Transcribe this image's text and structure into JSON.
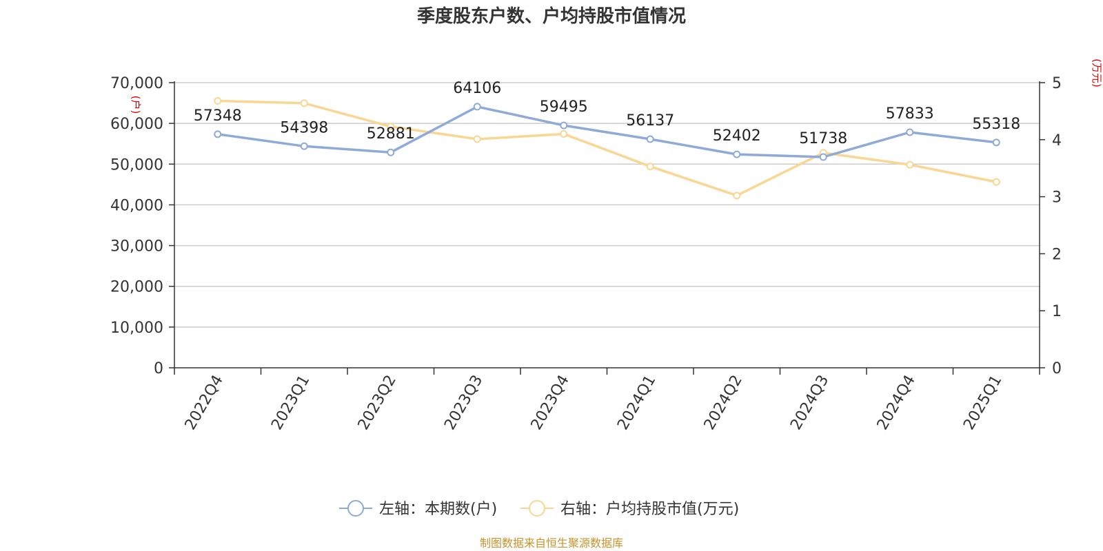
{
  "chart_data": {
    "type": "line",
    "title": "季度股东户数、户均持股市值情况",
    "categories": [
      "2022Q4",
      "2023Q1",
      "2023Q2",
      "2023Q3",
      "2023Q4",
      "2024Q1",
      "2024Q2",
      "2024Q3",
      "2024Q4",
      "2025Q1"
    ],
    "left_axis": {
      "unit": "(户)",
      "ylim": [
        0,
        70000
      ],
      "ticks": [
        "0",
        "10,000",
        "20,000",
        "30,000",
        "40,000",
        "50,000",
        "60,000",
        "70,000"
      ],
      "tick_values": [
        0,
        10000,
        20000,
        30000,
        40000,
        50000,
        60000,
        70000
      ]
    },
    "right_axis": {
      "unit": "(万元)",
      "ylim": [
        0,
        5
      ],
      "ticks": [
        "0",
        "1",
        "2",
        "3",
        "4",
        "5"
      ],
      "tick_values": [
        0,
        1,
        2,
        3,
        4,
        5
      ]
    },
    "grid": true,
    "legend_position": "bottom",
    "series": [
      {
        "name": "左轴：本期数(户)",
        "axis": "left",
        "color": "#8eaad8",
        "values": [
          57348,
          54398,
          52881,
          64106,
          59495,
          56137,
          52402,
          51738,
          57833,
          55318
        ],
        "labels": [
          "57348",
          "54398",
          "52881",
          "64106",
          "59495",
          "56137",
          "52402",
          "51738",
          "57833",
          "55318"
        ]
      },
      {
        "name": "右轴：户均持股市值(万元)",
        "axis": "right",
        "color": "#fad693",
        "values": [
          4.68,
          4.64,
          4.23,
          4.01,
          4.1,
          3.53,
          3.02,
          3.77,
          3.56,
          3.26
        ]
      }
    ],
    "source": "制图数据来自恒生聚源数据库"
  }
}
